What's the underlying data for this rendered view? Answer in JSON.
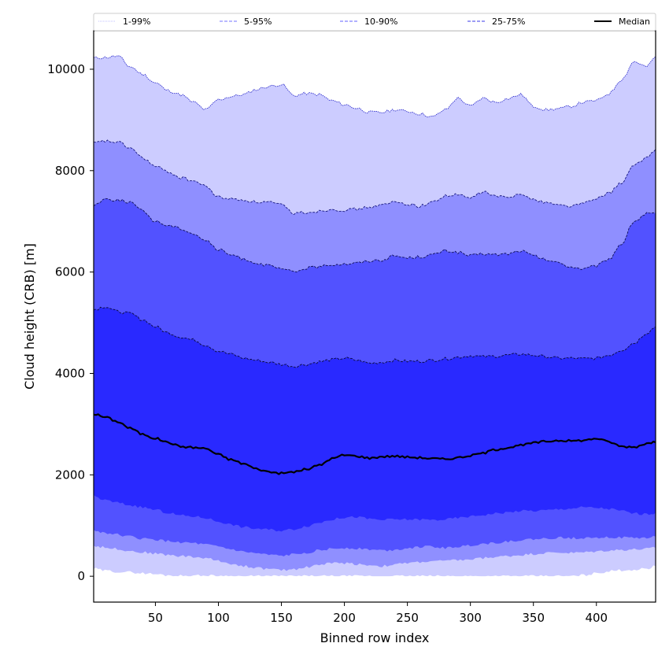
{
  "chart_data": {
    "type": "area",
    "title": "",
    "xlabel": "Binned row index",
    "ylabel": "Cloud height (CRB) [m]",
    "xlim": [
      1,
      447
    ],
    "ylim": [
      -510,
      10760
    ],
    "xticks": [
      50,
      100,
      150,
      200,
      250,
      300,
      350,
      400
    ],
    "yticks": [
      0,
      2000,
      4000,
      6000,
      8000,
      10000
    ],
    "grid": false,
    "legend_position": "top",
    "x": [
      1,
      10,
      20,
      30,
      40,
      50,
      60,
      70,
      80,
      90,
      100,
      110,
      120,
      130,
      140,
      150,
      160,
      170,
      180,
      190,
      200,
      210,
      220,
      230,
      240,
      250,
      260,
      270,
      280,
      290,
      300,
      310,
      320,
      330,
      340,
      350,
      360,
      370,
      380,
      390,
      400,
      410,
      420,
      430,
      440,
      447
    ],
    "bands": [
      {
        "name": "1-99%",
        "fill": "#ccccff",
        "edge": "#3333cc",
        "legend_line": "#ccccff",
        "lower": [
          150,
          110,
          90,
          80,
          60,
          40,
          20,
          10,
          10,
          10,
          10,
          0,
          0,
          0,
          0,
          0,
          0,
          0,
          0,
          0,
          0,
          0,
          0,
          0,
          0,
          0,
          0,
          0,
          0,
          0,
          0,
          0,
          0,
          0,
          0,
          0,
          0,
          0,
          0,
          20,
          60,
          100,
          120,
          130,
          150,
          200
        ],
        "upper": [
          10220,
          10230,
          10260,
          10050,
          9900,
          9730,
          9580,
          9500,
          9350,
          9200,
          9400,
          9460,
          9500,
          9600,
          9660,
          9700,
          9480,
          9520,
          9500,
          9380,
          9300,
          9230,
          9150,
          9150,
          9200,
          9170,
          9120,
          9060,
          9200,
          9430,
          9270,
          9430,
          9350,
          9420,
          9500,
          9270,
          9200,
          9220,
          9270,
          9350,
          9380,
          9520,
          9800,
          10150,
          10050,
          10250
        ]
      },
      {
        "name": "5-95%",
        "fill": "#8f8fff",
        "edge": "#1a1a80",
        "legend_line": "#8f8fff",
        "lower": [
          600,
          570,
          540,
          500,
          470,
          450,
          420,
          400,
          380,
          360,
          300,
          250,
          200,
          170,
          140,
          120,
          140,
          180,
          230,
          260,
          260,
          240,
          220,
          200,
          230,
          260,
          280,
          300,
          300,
          320,
          330,
          360,
          380,
          400,
          420,
          440,
          460,
          470,
          460,
          470,
          490,
          510,
          520,
          530,
          540,
          560
        ],
        "upper": [
          8540,
          8580,
          8560,
          8450,
          8250,
          8080,
          7980,
          7860,
          7800,
          7690,
          7480,
          7440,
          7420,
          7380,
          7380,
          7320,
          7160,
          7180,
          7200,
          7240,
          7220,
          7240,
          7280,
          7320,
          7380,
          7340,
          7300,
          7380,
          7500,
          7520,
          7460,
          7580,
          7500,
          7460,
          7560,
          7420,
          7380,
          7320,
          7300,
          7360,
          7440,
          7560,
          7760,
          8100,
          8260,
          8420
        ]
      },
      {
        "name": "10-90%",
        "fill": "#5252ff",
        "edge": "#10105a",
        "legend_line": "#8f8fff",
        "lower": [
          900,
          860,
          820,
          780,
          740,
          720,
          690,
          670,
          650,
          620,
          580,
          530,
          480,
          450,
          420,
          400,
          430,
          470,
          510,
          540,
          560,
          550,
          530,
          510,
          520,
          560,
          580,
          580,
          560,
          580,
          610,
          640,
          660,
          690,
          710,
          730,
          740,
          760,
          750,
          760,
          770,
          770,
          760,
          760,
          750,
          780
        ],
        "upper": [
          7320,
          7440,
          7420,
          7380,
          7200,
          7000,
          6920,
          6860,
          6760,
          6620,
          6440,
          6340,
          6260,
          6180,
          6120,
          6060,
          6000,
          6080,
          6100,
          6150,
          6160,
          6180,
          6220,
          6240,
          6320,
          6280,
          6300,
          6340,
          6420,
          6390,
          6320,
          6360,
          6340,
          6360,
          6420,
          6320,
          6240,
          6180,
          6100,
          6060,
          6120,
          6260,
          6560,
          7000,
          7150,
          7160
        ]
      },
      {
        "name": "25-75%",
        "fill": "#2929ff",
        "edge": "#0a0a40",
        "legend_line": "#6666ee",
        "lower": [
          1580,
          1500,
          1450,
          1400,
          1360,
          1310,
          1250,
          1200,
          1180,
          1150,
          1080,
          1020,
          970,
          940,
          920,
          900,
          930,
          990,
          1060,
          1120,
          1160,
          1170,
          1130,
          1110,
          1120,
          1120,
          1120,
          1110,
          1120,
          1150,
          1180,
          1210,
          1240,
          1260,
          1290,
          1290,
          1300,
          1320,
          1340,
          1360,
          1350,
          1330,
          1290,
          1240,
          1220,
          1250
        ],
        "upper": [
          5260,
          5320,
          5220,
          5180,
          5060,
          4920,
          4800,
          4720,
          4660,
          4560,
          4440,
          4380,
          4300,
          4260,
          4220,
          4180,
          4140,
          4180,
          4230,
          4270,
          4300,
          4260,
          4200,
          4220,
          4260,
          4240,
          4240,
          4260,
          4290,
          4320,
          4350,
          4330,
          4340,
          4360,
          4380,
          4360,
          4330,
          4300,
          4300,
          4290,
          4300,
          4360,
          4460,
          4600,
          4800,
          4920
        ]
      }
    ],
    "median": {
      "name": "Median",
      "color": "#000000",
      "values": [
        3200,
        3140,
        3050,
        2920,
        2800,
        2720,
        2640,
        2560,
        2540,
        2520,
        2400,
        2300,
        2220,
        2120,
        2060,
        2030,
        2060,
        2110,
        2190,
        2320,
        2390,
        2370,
        2330,
        2360,
        2370,
        2350,
        2340,
        2320,
        2310,
        2340,
        2380,
        2430,
        2500,
        2540,
        2580,
        2630,
        2660,
        2680,
        2670,
        2680,
        2720,
        2650,
        2560,
        2550,
        2620,
        2640
      ]
    },
    "legend": [
      {
        "label": "1-99%",
        "color": "#ccccff",
        "style": "dotted"
      },
      {
        "label": "5-95%",
        "color": "#8f8fff",
        "style": "dashed"
      },
      {
        "label": "10-90%",
        "color": "#8080ff",
        "style": "dashed"
      },
      {
        "label": "25-75%",
        "color": "#6060ee",
        "style": "dashed"
      },
      {
        "label": "Median",
        "color": "#000000",
        "style": "solid"
      }
    ]
  }
}
